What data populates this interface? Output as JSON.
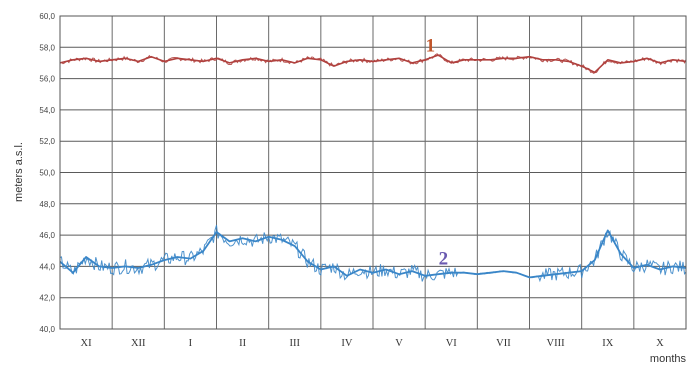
{
  "chart_data": {
    "type": "line",
    "ylabel": "meters a.s.l.",
    "xlabel": "months",
    "ylim": [
      40,
      60
    ],
    "yticks": [
      "40,0",
      "42,0",
      "44,0",
      "46,0",
      "48,0",
      "50,0",
      "52,0",
      "54,0",
      "56,0",
      "58,0",
      "60,0"
    ],
    "categories": [
      "XI",
      "XII",
      "I",
      "II",
      "III",
      "IV",
      "V",
      "VI",
      "VII",
      "VIII",
      "IX",
      "X"
    ],
    "grid": true,
    "series": [
      {
        "label": "1",
        "color": "#b0413e",
        "x": [
          0,
          0.25,
          0.5,
          0.75,
          1,
          1.25,
          1.5,
          1.75,
          2,
          2.25,
          2.5,
          2.75,
          3,
          3.25,
          3.5,
          3.75,
          4,
          4.25,
          4.5,
          4.75,
          5,
          5.25,
          5.5,
          5.75,
          6,
          6.25,
          6.5,
          6.75,
          7,
          7.25,
          7.5,
          7.75,
          8,
          8.25,
          8.5,
          8.75,
          9,
          9.25,
          9.5,
          9.75,
          10,
          10.25,
          10.5,
          10.75,
          11,
          11.25,
          11.5,
          11.75,
          12
        ],
        "values": [
          57.0,
          57.2,
          57.3,
          57.1,
          57.2,
          57.3,
          57.1,
          57.4,
          57.1,
          57.3,
          57.2,
          57.1,
          57.3,
          57.0,
          57.2,
          57.3,
          57.1,
          57.2,
          57.0,
          57.3,
          57.2,
          56.8,
          57.1,
          57.2,
          57.1,
          57.2,
          57.3,
          57.0,
          57.2,
          57.5,
          57.0,
          57.2,
          57.2,
          57.2,
          57.3,
          57.3,
          57.4,
          57.2,
          57.2,
          57.1,
          56.8,
          56.4,
          57.2,
          57.0,
          57.1,
          57.3,
          57.0,
          57.2,
          57.1
        ]
      },
      {
        "label": "2",
        "color": "#3a86c8",
        "x": [
          0,
          0.25,
          0.5,
          0.75,
          1,
          1.25,
          1.5,
          1.75,
          2,
          2.25,
          2.5,
          2.75,
          3,
          3.25,
          3.5,
          3.75,
          4,
          4.25,
          4.5,
          4.75,
          5,
          5.25,
          5.5,
          5.75,
          6,
          6.25,
          6.5,
          6.75,
          7,
          7.25,
          7.5,
          7.75,
          8,
          8.25,
          8.5,
          8.75,
          9,
          9.25,
          9.5,
          9.75,
          10,
          10.25,
          10.5,
          10.75,
          11,
          11.25,
          11.5,
          11.75,
          12
        ],
        "values": [
          44.3,
          43.6,
          44.6,
          44.0,
          43.9,
          44.0,
          43.9,
          44.1,
          44.4,
          44.6,
          44.5,
          45.0,
          46.2,
          45.6,
          45.8,
          45.6,
          45.9,
          45.7,
          45.3,
          44.3,
          43.8,
          44.0,
          43.4,
          43.8,
          43.6,
          43.8,
          43.5,
          43.7,
          43.4,
          43.5,
          43.6,
          43.6,
          43.5,
          43.6,
          43.7,
          43.6,
          43.3,
          43.4,
          43.5,
          43.6,
          43.7,
          44.4,
          46.3,
          44.8,
          43.9,
          44.1,
          43.8,
          44.0,
          43.9
        ]
      }
    ]
  }
}
